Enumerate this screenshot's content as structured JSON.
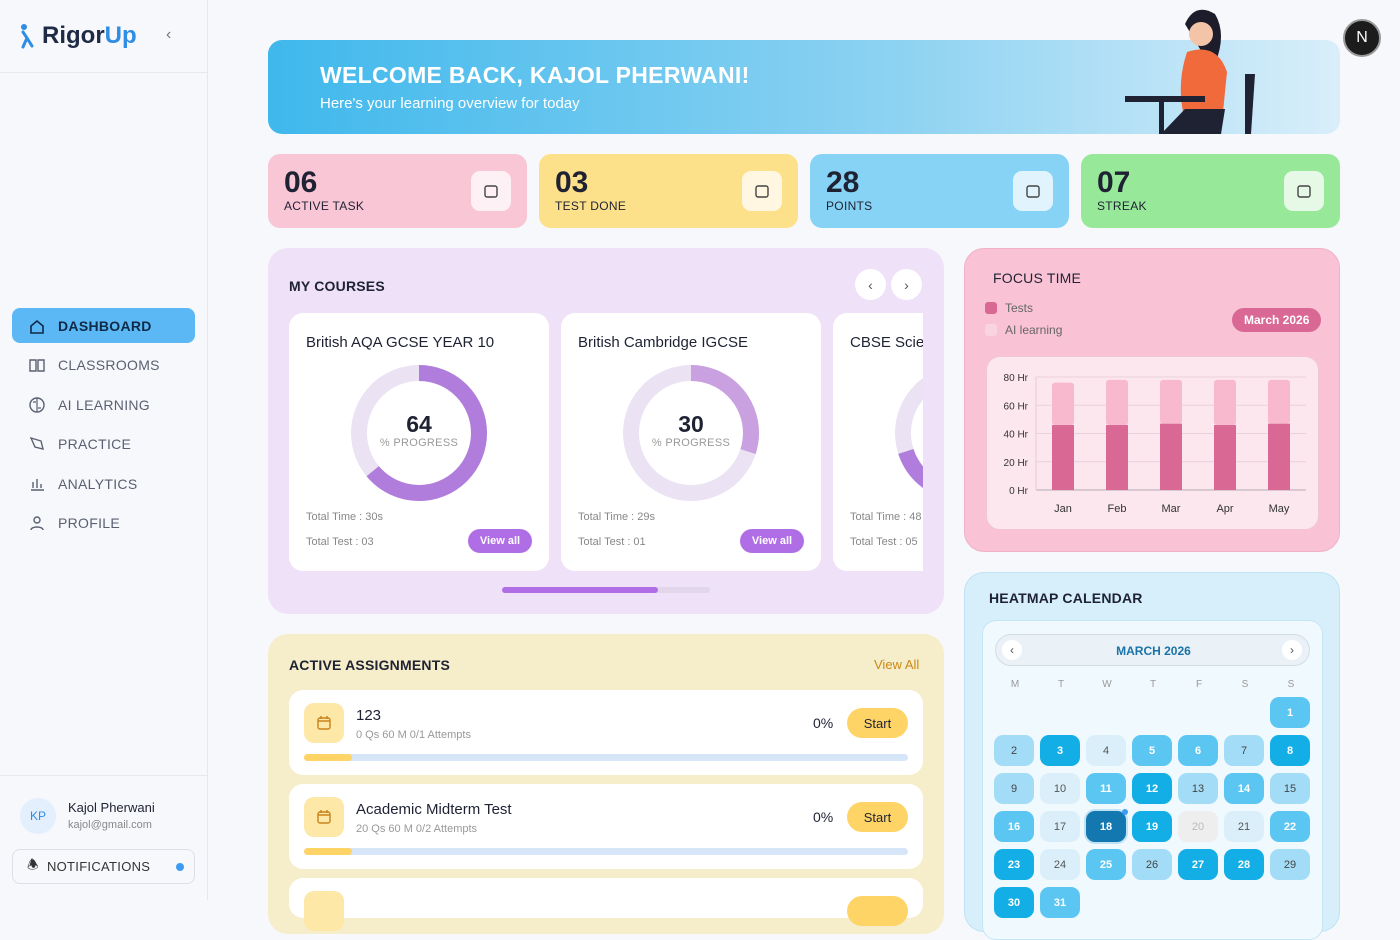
{
  "brand": {
    "name_a": "Rigor",
    "name_b": "Up"
  },
  "sidebar": {
    "items": [
      {
        "label": "DASHBOARD",
        "icon": "home-icon",
        "active": true
      },
      {
        "label": "CLASSROOMS",
        "icon": "book-icon"
      },
      {
        "label": "AI LEARNING",
        "icon": "brain-icon"
      },
      {
        "label": "PRACTICE",
        "icon": "pen-icon"
      },
      {
        "label": "ANALYTICS",
        "icon": "bar-chart-icon"
      },
      {
        "label": "PROFILE",
        "icon": "user-icon"
      }
    ],
    "user": {
      "initials": "KP",
      "name": "Kajol Pherwani",
      "email": "kajol@gmail.com"
    },
    "notifications_label": "NOTIFICATIONS"
  },
  "header": {
    "avatar_initial": "N"
  },
  "banner": {
    "title": "WELCOME BACK, KAJOL PHERWANI!",
    "subtitle": "Here's your learning overview for today"
  },
  "stats": [
    {
      "value": "06",
      "label": "ACTIVE TASK",
      "color": "#f9c6d6",
      "icon": "calendar-icon"
    },
    {
      "value": "03",
      "label": "TEST DONE",
      "color": "#fde08a",
      "icon": "clipboard-check-icon"
    },
    {
      "value": "28",
      "label": "POINTS",
      "color": "#86d3f5",
      "icon": "medal-icon"
    },
    {
      "value": "07",
      "label": "STREAK",
      "color": "#98e89a",
      "icon": "flame-icon"
    }
  ],
  "courses": {
    "title": "MY COURSES",
    "items": [
      {
        "name": "British AQA GCSE YEAR 10",
        "progress": 64,
        "progress_label": "% PROGRESS",
        "time": "Total Time : 30s",
        "tests": "Total Test : 03",
        "button": "View all"
      },
      {
        "name": "British Cambridge IGCSE",
        "progress": 30,
        "progress_label": "% PROGRESS",
        "time": "Total Time : 29s",
        "tests": "Total Test : 01",
        "button": "View all"
      },
      {
        "name": "CBSE Scie",
        "progress": 70,
        "time": "Total Time : 48",
        "tests": "Total Test : 05"
      }
    ]
  },
  "assignments": {
    "title": "ACTIVE ASSIGNMENTS",
    "view_all": "View All",
    "items": [
      {
        "title": "123",
        "meta": "0 Qs 60 M 0/1 Attempts",
        "percent": "0%",
        "button": "Start"
      },
      {
        "title": "Academic Midterm Test",
        "meta": "20 Qs 60 M 0/2 Attempts",
        "percent": "0%",
        "button": "Start"
      }
    ]
  },
  "focus": {
    "title": "FOCUS TIME",
    "badge": "March 2026"
  },
  "chart_data": {
    "type": "bar",
    "stacked": true,
    "categories": [
      "Jan",
      "Feb",
      "Mar",
      "Apr",
      "May"
    ],
    "series": [
      {
        "name": "Tests",
        "values": [
          46,
          46,
          47,
          46,
          47
        ],
        "color": "#d96894"
      },
      {
        "name": "AI learning",
        "values": [
          30,
          32,
          31,
          32,
          31
        ],
        "color": "#f8b9cf"
      }
    ],
    "yticks": [
      "0 Hr",
      "20 Hr",
      "40 Hr",
      "60 Hr",
      "80 Hr"
    ],
    "ylim": [
      0,
      80
    ],
    "grid": true,
    "legend": "top-left"
  },
  "heatmap": {
    "title": "HEATMAP CALENDAR",
    "month": "MARCH 2026",
    "weekdays": [
      "M",
      "T",
      "W",
      "T",
      "F",
      "S",
      "S"
    ],
    "levels": [
      2,
      1,
      3,
      0,
      2,
      2,
      1,
      3,
      1,
      0,
      2,
      3,
      1,
      2,
      1,
      2,
      0,
      4,
      3,
      -1,
      0,
      2,
      3,
      0,
      2,
      1,
      3,
      3,
      1,
      3,
      2
    ],
    "selected": 18
  }
}
